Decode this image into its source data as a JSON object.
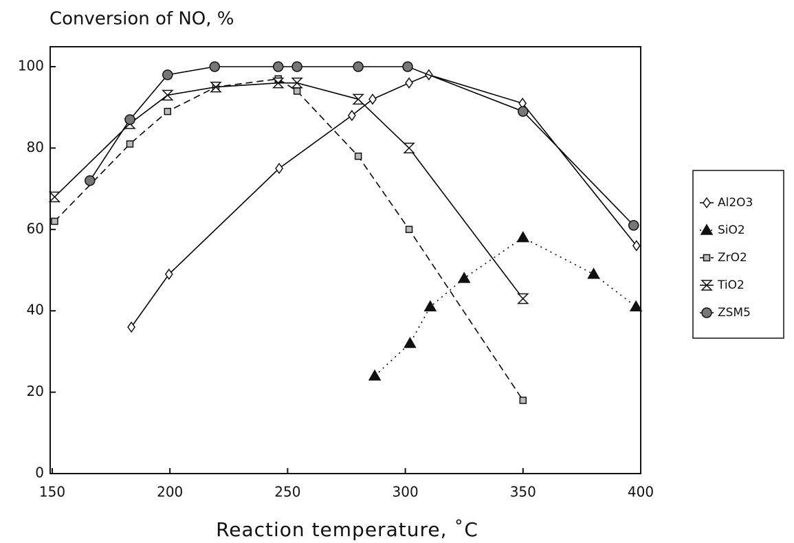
{
  "chart_data": {
    "type": "line",
    "title": "Conversion of NO, %",
    "x_label": "Reaction temperature, ˚C",
    "xlim": [
      150,
      400
    ],
    "xticks": [
      150,
      200,
      250,
      300,
      350,
      400
    ],
    "ylim": [
      0,
      100
    ],
    "yticks": [
      0,
      20,
      40,
      60,
      80,
      100
    ],
    "legend": "right",
    "series": [
      {
        "name": "Al2O3",
        "color": "#000000",
        "marker": "diamond",
        "dash": "solid",
        "x": [
          183.6,
          199.6,
          246.4,
          277.3,
          286.1,
          301.6,
          310,
          349.8,
          398.2
        ],
        "values": [
          36,
          49,
          75,
          88,
          92,
          96,
          98,
          91,
          56
        ]
      },
      {
        "name": "SiO2",
        "color": "#000000",
        "marker": "triangle",
        "dash": "dotted",
        "x": [
          287,
          302,
          310.6,
          325,
          350,
          380,
          398
        ],
        "values": [
          24,
          32,
          41,
          48,
          58,
          49,
          41
        ]
      },
      {
        "name": "ZrO2",
        "color": "#000000",
        "marker": "square",
        "dash": "dashed",
        "x": [
          151,
          183,
          199,
          219.5,
          246,
          254,
          280,
          301.6,
          350
        ],
        "values": [
          62,
          81,
          89,
          95,
          97,
          94,
          78,
          60,
          18
        ]
      },
      {
        "name": "TiO2",
        "color": "#000000",
        "marker": "hourglass",
        "dash": "solid",
        "x": [
          151,
          183,
          199,
          219.5,
          246,
          254,
          280,
          301.6,
          350
        ],
        "values": [
          68,
          86,
          93,
          95,
          96,
          96,
          92,
          80,
          43
        ]
      },
      {
        "name": "ZSM5",
        "color": "#000000",
        "marker": "circle",
        "dash": "solid",
        "x": [
          166,
          183,
          199,
          219,
          246,
          254,
          280,
          301,
          350,
          397
        ],
        "values": [
          72,
          87,
          98,
          100,
          100,
          100,
          100,
          100,
          89,
          61
        ]
      }
    ]
  }
}
